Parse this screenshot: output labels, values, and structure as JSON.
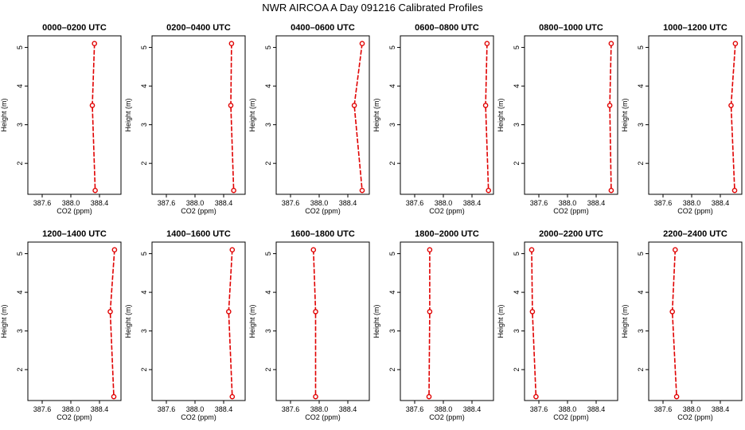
{
  "figure": {
    "title": "NWR AIRCOA A  Day 091216  Calibrated Profiles"
  },
  "chart_data": [
    {
      "type": "line",
      "title": "0000–0200 UTC",
      "xlabel": "CO2 (ppm)",
      "ylabel": "Height (m)",
      "xlim": [
        387.4,
        388.7
      ],
      "ylim": [
        1.2,
        5.3
      ],
      "xticks": [
        387.6,
        388.0,
        388.4
      ],
      "xtick_labels": [
        "387.6",
        "388.0",
        "388.4"
      ],
      "yticks": [
        2,
        3,
        4,
        5
      ],
      "ytick_labels": [
        "2",
        "3",
        "4",
        "5"
      ],
      "x": [
        388.33,
        388.3,
        388.34
      ],
      "y": [
        5.1,
        3.5,
        1.3
      ],
      "color": "#e00000"
    },
    {
      "type": "line",
      "title": "0200–0400 UTC",
      "xlabel": "CO2 (ppm)",
      "ylabel": "Height (m)",
      "xlim": [
        387.4,
        388.7
      ],
      "ylim": [
        1.2,
        5.3
      ],
      "xticks": [
        387.6,
        388.0,
        388.4
      ],
      "xtick_labels": [
        "387.6",
        "388.0",
        "388.4"
      ],
      "yticks": [
        2,
        3,
        4,
        5
      ],
      "ytick_labels": [
        "2",
        "3",
        "4",
        "5"
      ],
      "x": [
        388.51,
        388.5,
        388.54
      ],
      "y": [
        5.1,
        3.5,
        1.3
      ],
      "color": "#e00000"
    },
    {
      "type": "line",
      "title": "0400–0600 UTC",
      "xlabel": "CO2 (ppm)",
      "ylabel": "Height (m)",
      "xlim": [
        387.4,
        388.7
      ],
      "ylim": [
        1.2,
        5.3
      ],
      "xticks": [
        387.6,
        388.0,
        388.4
      ],
      "xtick_labels": [
        "387.6",
        "388.0",
        "388.4"
      ],
      "yticks": [
        2,
        3,
        4,
        5
      ],
      "ytick_labels": [
        "2",
        "3",
        "4",
        "5"
      ],
      "x": [
        388.6,
        388.49,
        388.6
      ],
      "y": [
        5.1,
        3.5,
        1.3
      ],
      "color": "#e00000"
    },
    {
      "type": "line",
      "title": "0600–0800 UTC",
      "xlabel": "CO2 (ppm)",
      "ylabel": "Height (m)",
      "xlim": [
        387.4,
        388.7
      ],
      "ylim": [
        1.2,
        5.3
      ],
      "xticks": [
        387.6,
        388.0,
        388.4
      ],
      "xtick_labels": [
        "387.6",
        "388.0",
        "388.4"
      ],
      "yticks": [
        2,
        3,
        4,
        5
      ],
      "ytick_labels": [
        "2",
        "3",
        "4",
        "5"
      ],
      "x": [
        388.61,
        388.59,
        388.63
      ],
      "y": [
        5.1,
        3.5,
        1.3
      ],
      "color": "#e00000"
    },
    {
      "type": "line",
      "title": "0800–1000 UTC",
      "xlabel": "CO2 (ppm)",
      "ylabel": "Height (m)",
      "xlim": [
        387.4,
        388.7
      ],
      "ylim": [
        1.2,
        5.3
      ],
      "xticks": [
        387.6,
        388.0,
        388.4
      ],
      "xtick_labels": [
        "387.6",
        "388.0",
        "388.4"
      ],
      "yticks": [
        2,
        3,
        4,
        5
      ],
      "ytick_labels": [
        "2",
        "3",
        "4",
        "5"
      ],
      "x": [
        388.61,
        388.59,
        388.61
      ],
      "y": [
        5.1,
        3.5,
        1.3
      ],
      "color": "#e00000"
    },
    {
      "type": "line",
      "title": "1000–1200 UTC",
      "xlabel": "CO2 (ppm)",
      "ylabel": "Height (m)",
      "xlim": [
        387.4,
        388.7
      ],
      "ylim": [
        1.2,
        5.3
      ],
      "xticks": [
        387.6,
        388.0,
        388.4
      ],
      "xtick_labels": [
        "387.6",
        "388.0",
        "388.4"
      ],
      "yticks": [
        2,
        3,
        4,
        5
      ],
      "ytick_labels": [
        "2",
        "3",
        "4",
        "5"
      ],
      "x": [
        388.61,
        388.55,
        388.6
      ],
      "y": [
        5.1,
        3.5,
        1.3
      ],
      "color": "#e00000"
    },
    {
      "type": "line",
      "title": "1200–1400 UTC",
      "xlabel": "CO2 (ppm)",
      "ylabel": "Height (m)",
      "xlim": [
        387.4,
        388.7
      ],
      "ylim": [
        1.2,
        5.3
      ],
      "xticks": [
        387.6,
        388.0,
        388.4
      ],
      "xtick_labels": [
        "387.6",
        "388.0",
        "388.4"
      ],
      "yticks": [
        2,
        3,
        4,
        5
      ],
      "ytick_labels": [
        "2",
        "3",
        "4",
        "5"
      ],
      "x": [
        388.61,
        388.55,
        388.6
      ],
      "y": [
        5.1,
        3.5,
        1.3
      ],
      "color": "#e00000"
    },
    {
      "type": "line",
      "title": "1400–1600 UTC",
      "xlabel": "CO2 (ppm)",
      "ylabel": "Height (m)",
      "xlim": [
        387.4,
        388.7
      ],
      "ylim": [
        1.2,
        5.3
      ],
      "xticks": [
        387.6,
        388.0,
        388.4
      ],
      "xtick_labels": [
        "387.6",
        "388.0",
        "388.4"
      ],
      "yticks": [
        2,
        3,
        4,
        5
      ],
      "ytick_labels": [
        "2",
        "3",
        "4",
        "5"
      ],
      "x": [
        388.52,
        388.47,
        388.52
      ],
      "y": [
        5.1,
        3.5,
        1.3
      ],
      "color": "#e00000"
    },
    {
      "type": "line",
      "title": "1600–1800 UTC",
      "xlabel": "CO2 (ppm)",
      "ylabel": "Height (m)",
      "xlim": [
        387.4,
        388.7
      ],
      "ylim": [
        1.2,
        5.3
      ],
      "xticks": [
        387.6,
        388.0,
        388.4
      ],
      "xtick_labels": [
        "387.6",
        "388.0",
        "388.4"
      ],
      "yticks": [
        2,
        3,
        4,
        5
      ],
      "ytick_labels": [
        "2",
        "3",
        "4",
        "5"
      ],
      "x": [
        387.92,
        387.95,
        387.95
      ],
      "y": [
        5.1,
        3.5,
        1.3
      ],
      "color": "#e00000"
    },
    {
      "type": "line",
      "title": "1800–2000 UTC",
      "xlabel": "CO2 (ppm)",
      "ylabel": "Height (m)",
      "xlim": [
        387.4,
        388.7
      ],
      "ylim": [
        1.2,
        5.3
      ],
      "xticks": [
        387.6,
        388.0,
        388.4
      ],
      "xtick_labels": [
        "387.6",
        "388.0",
        "388.4"
      ],
      "yticks": [
        2,
        3,
        4,
        5
      ],
      "ytick_labels": [
        "2",
        "3",
        "4",
        "5"
      ],
      "x": [
        387.81,
        387.81,
        387.8
      ],
      "y": [
        5.1,
        3.5,
        1.3
      ],
      "color": "#e00000"
    },
    {
      "type": "line",
      "title": "2000–2200 UTC",
      "xlabel": "CO2 (ppm)",
      "ylabel": "Height (m)",
      "xlim": [
        387.4,
        388.7
      ],
      "ylim": [
        1.2,
        5.3
      ],
      "xticks": [
        387.6,
        388.0,
        388.4
      ],
      "xtick_labels": [
        "387.6",
        "388.0",
        "388.4"
      ],
      "yticks": [
        2,
        3,
        4,
        5
      ],
      "ytick_labels": [
        "2",
        "3",
        "4",
        "5"
      ],
      "x": [
        387.5,
        387.51,
        387.56
      ],
      "y": [
        5.1,
        3.5,
        1.3
      ],
      "color": "#e00000"
    },
    {
      "type": "line",
      "title": "2200–2400 UTC",
      "xlabel": "CO2 (ppm)",
      "ylabel": "Height (m)",
      "xlim": [
        387.4,
        388.7
      ],
      "ylim": [
        1.2,
        5.3
      ],
      "xticks": [
        387.6,
        388.0,
        388.4
      ],
      "xtick_labels": [
        "387.6",
        "388.0",
        "388.4"
      ],
      "yticks": [
        2,
        3,
        4,
        5
      ],
      "ytick_labels": [
        "2",
        "3",
        "4",
        "5"
      ],
      "x": [
        387.77,
        387.73,
        387.79
      ],
      "y": [
        5.1,
        3.5,
        1.3
      ],
      "color": "#e00000"
    }
  ]
}
